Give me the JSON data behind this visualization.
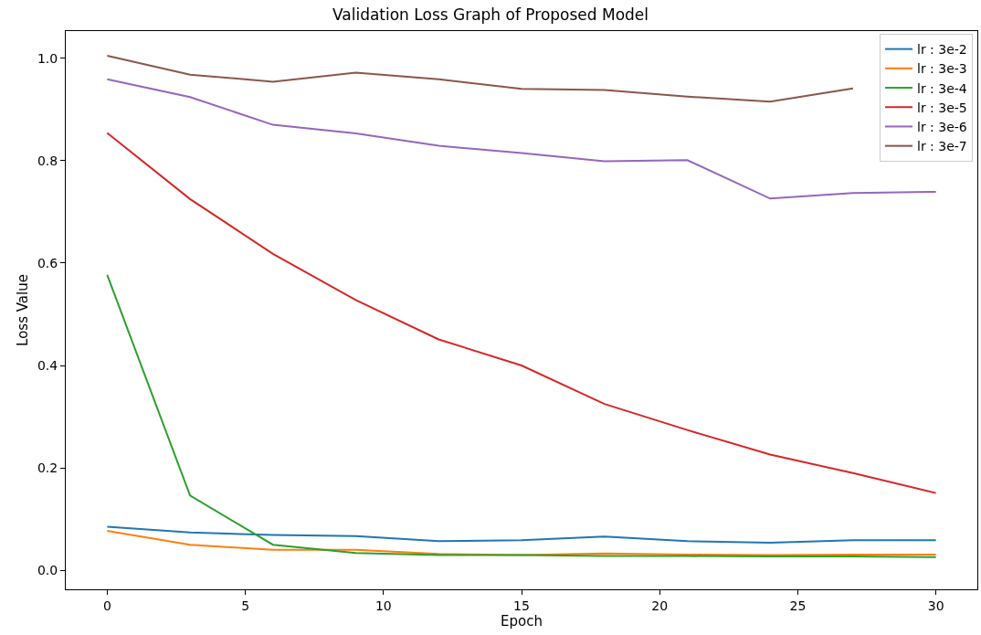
{
  "chart_data": {
    "type": "line",
    "title": "Validation Loss Graph of Proposed Model",
    "xlabel": "Epoch",
    "ylabel": "Loss Value",
    "x": [
      0,
      3,
      6,
      9,
      12,
      15,
      18,
      21,
      24,
      27,
      30
    ],
    "series": [
      {
        "name": "lr : 3e-2",
        "color": "#1f77b4",
        "values": [
          0.085,
          0.074,
          0.069,
          0.067,
          0.057,
          0.059,
          0.066,
          0.057,
          0.054,
          0.059,
          0.059
        ]
      },
      {
        "name": "lr : 3e-3",
        "color": "#ff7f0e",
        "values": [
          0.077,
          0.05,
          0.04,
          0.04,
          0.032,
          0.03,
          0.033,
          0.031,
          0.03,
          0.031,
          0.031
        ]
      },
      {
        "name": "lr : 3e-4",
        "color": "#2ca02c",
        "values": [
          0.577,
          0.146,
          0.05,
          0.034,
          0.03,
          0.03,
          0.028,
          0.028,
          0.027,
          0.027,
          0.026
        ]
      },
      {
        "name": "lr : 3e-5",
        "color": "#d62728",
        "values": [
          0.854,
          0.725,
          0.618,
          0.528,
          0.451,
          0.4,
          0.325,
          0.274,
          0.226,
          0.19,
          0.151
        ]
      },
      {
        "name": "lr : 3e-6",
        "color": "#9467bd",
        "values": [
          0.959,
          0.924,
          0.87,
          0.853,
          0.829,
          0.815,
          0.799,
          0.801,
          0.726,
          0.737,
          0.739
        ]
      },
      {
        "name": "lr : 3e-7",
        "color": "#8c564b",
        "values": [
          1.005,
          0.968,
          0.954,
          0.972,
          0.959,
          0.94,
          0.938,
          0.925,
          0.915,
          0.941,
          null
        ]
      }
    ],
    "xlim": [
      -1.5,
      31.5
    ],
    "xticks": [
      0,
      5,
      10,
      15,
      20,
      25,
      30
    ],
    "ylim": [
      -0.037,
      1.053
    ],
    "yticks": [
      {
        "value": 0,
        "label": "0.0"
      },
      {
        "value": 0.2,
        "label": "0.2"
      },
      {
        "value": 0.4,
        "label": "0.4"
      },
      {
        "value": 0.6,
        "label": "0.6"
      },
      {
        "value": 0.8,
        "label": "0.8"
      },
      {
        "value": 1.0,
        "label": "1.0"
      }
    ],
    "legend": "top right",
    "marker": "none",
    "line_style": "solid"
  }
}
